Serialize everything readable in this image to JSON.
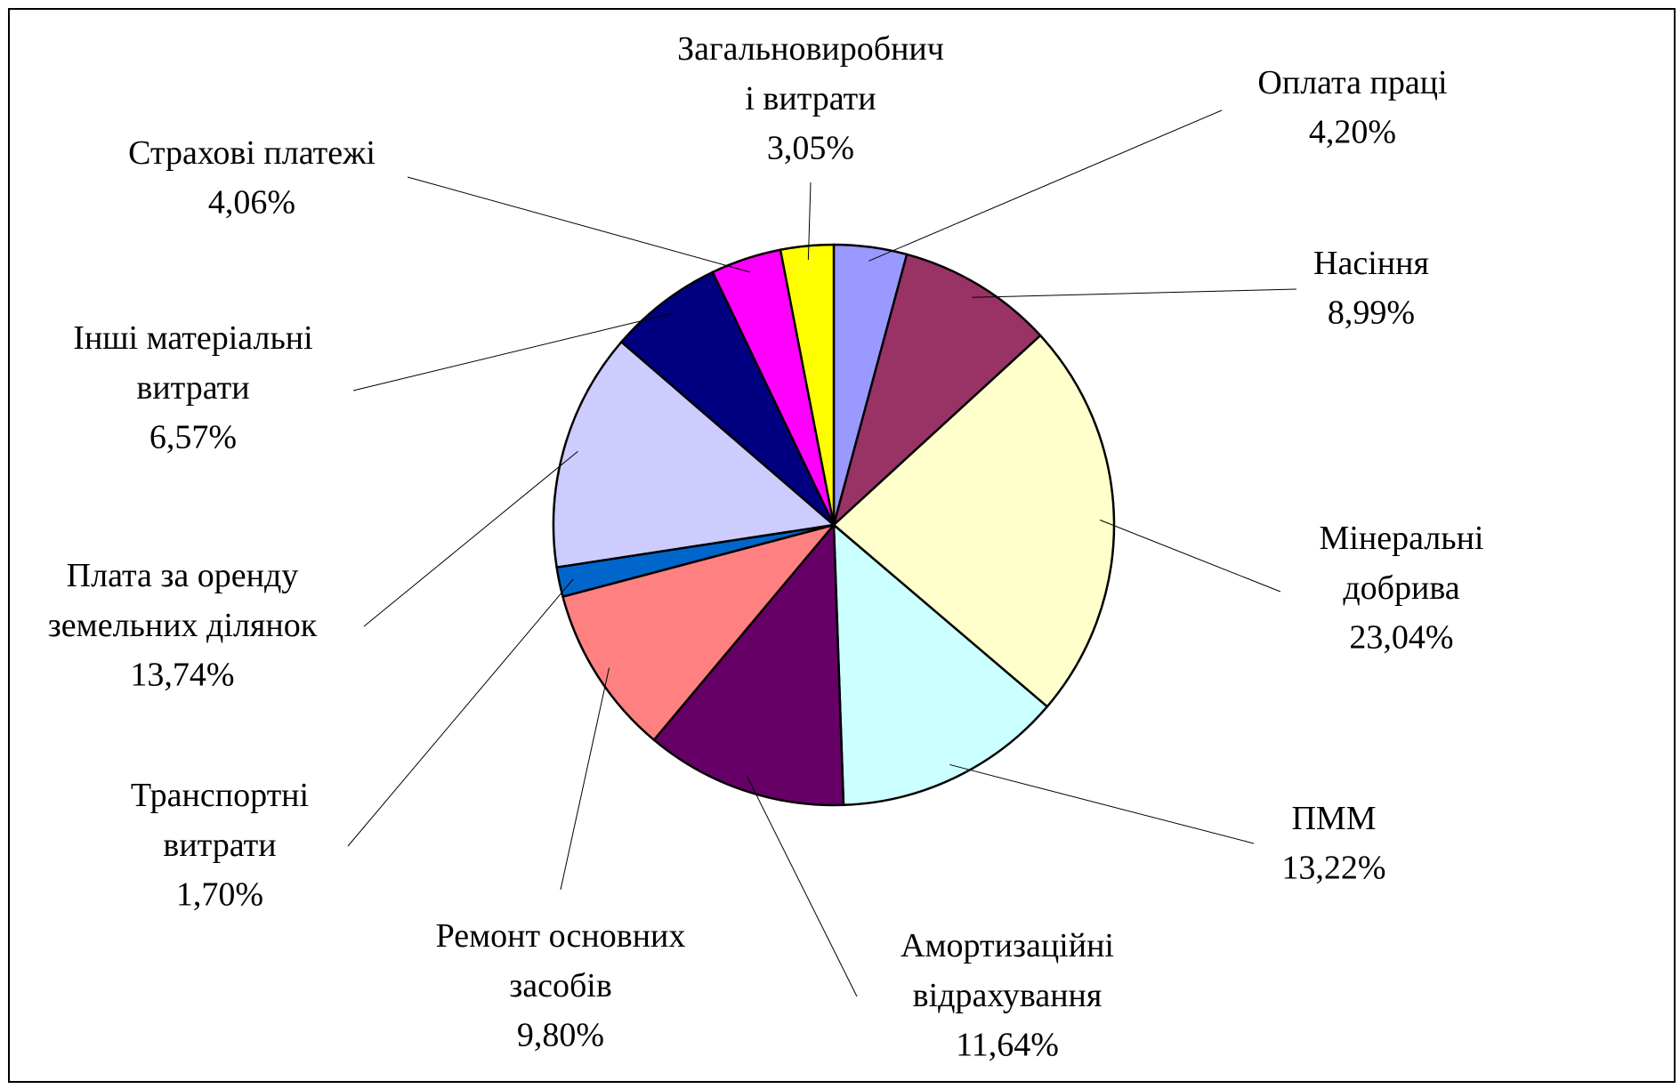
{
  "chart_data": {
    "type": "pie",
    "categories": [
      "Оплата праці",
      "Насіння",
      "Мінеральні\nдобрива",
      "ПММ",
      "Амортизаційні\nвідрахування",
      "Ремонт основних\nзасобів",
      "Транспортні\nвитрати",
      "Плата за оренду\nземельних ділянок",
      "Інші матеріальні\nвитрати",
      "Страхові платежі",
      "Загальновиробнич\nі витрати"
    ],
    "values": [
      4.2,
      8.99,
      23.04,
      13.22,
      11.64,
      9.8,
      1.7,
      13.74,
      6.57,
      4.06,
      3.05
    ],
    "value_labels": [
      "4,20%",
      "8,99%",
      "23,04%",
      "13,22%",
      "11,64%",
      "9,80%",
      "1,70%",
      "13,74%",
      "6,57%",
      "4,06%",
      "3,05%"
    ],
    "colors": [
      "#9999ff",
      "#993366",
      "#ffffcc",
      "#ccffff",
      "#660066",
      "#ff8080",
      "#0066cc",
      "#ccccff",
      "#000080",
      "#ff00ff",
      "#ffff00"
    ]
  }
}
